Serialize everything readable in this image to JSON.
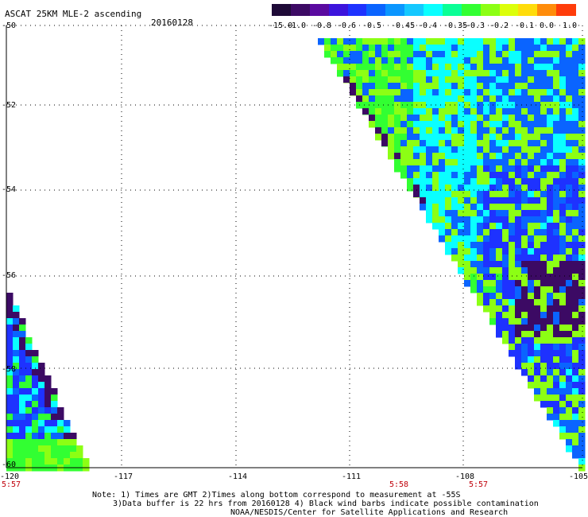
{
  "title": "ASCAT 25KM MLE-2 ascending",
  "date": "20160128",
  "colorbar": {
    "ticks": [
      "-15.0",
      "-1.0",
      "-0.8",
      "-0.6",
      "-0.5",
      "-0.45",
      "-0.4",
      "-0.35",
      "-0.3",
      "-0.2",
      "-0.1",
      "0.0",
      "1.0"
    ],
    "colors": [
      "#1e0a37",
      "#3c0a64",
      "#5a0aa0",
      "#3c14dc",
      "#1e32ff",
      "#0a64ff",
      "#0a96ff",
      "#14c8ff",
      "#0affff",
      "#0aff96",
      "#32ff32",
      "#8cff14",
      "#dcff0a",
      "#ffdc0a",
      "#ff8c0a",
      "#ff3c0a"
    ]
  },
  "map": {
    "lat_range": [
      -60,
      -50
    ],
    "lon_range": [
      -120,
      -105
    ],
    "lat_labels": [
      "-50",
      "-52",
      "-54",
      "-56",
      "-58",
      "-60"
    ],
    "lon_labels": [
      "-120",
      "-117",
      "-114",
      "-111",
      "-108",
      "-105"
    ],
    "pass_times": [
      "5:57",
      "5:58",
      "5:57"
    ],
    "swath_colors": {
      "dark": "#3c0a64",
      "blue": "#1e32ff",
      "mid_blue": "#0a64ff",
      "cyan": "#0affff",
      "green": "#32ff32",
      "light_green": "#8cff14"
    }
  },
  "notes": {
    "line1": "Note: 1) Times are GMT 2)Times along bottom correspond to measurement at -55S",
    "line2": "3)Data buffer is 22 hrs from 20160128 4) Black wind barbs indicate possible contamination",
    "line3": "NOAA/NESDIS/Center for Satellite Applications and Research"
  }
}
